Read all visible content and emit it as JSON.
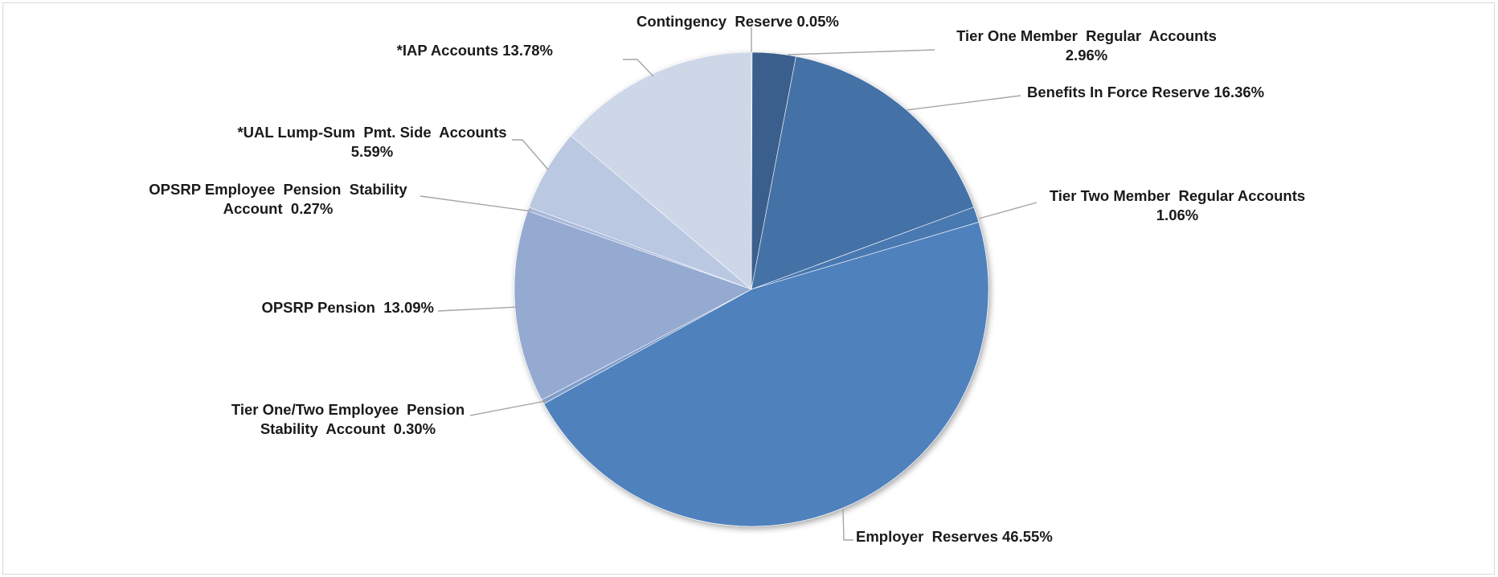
{
  "chart_data": {
    "type": "pie",
    "title": "",
    "start_angle_deg": 0,
    "direction": "clockwise",
    "slices": [
      {
        "name": "Contingency  Reserve",
        "value": 0.05,
        "label_lines": [
          "Contingency  Reserve 0.05%"
        ],
        "color": "#2f4f7a"
      },
      {
        "name": "Tier One Member  Regular  Accounts",
        "value": 2.96,
        "label_lines": [
          "Tier One Member  Regular  Accounts",
          "2.96%"
        ],
        "color": "#3a5e8c"
      },
      {
        "name": "Benefits In Force Reserve",
        "value": 16.36,
        "label_lines": [
          "Benefits In Force Reserve 16.36%"
        ],
        "color": "#4472a6"
      },
      {
        "name": "Tier Two Member  Regular Accounts",
        "value": 1.06,
        "label_lines": [
          "Tier Two Member  Regular Accounts",
          "1.06%"
        ],
        "color": "#4a79b1"
      },
      {
        "name": "Employer  Reserves",
        "value": 46.55,
        "label_lines": [
          "Employer  Reserves 46.55%"
        ],
        "color": "#4f81bd"
      },
      {
        "name": "Tier One/Two Employee  Pension Stability  Account",
        "value": 0.3,
        "label_lines": [
          "Tier One/Two Employee  Pension",
          "Stability  Account  0.30%"
        ],
        "color": "#7f9cc9"
      },
      {
        "name": "OPSRP Pension",
        "value": 13.09,
        "label_lines": [
          "OPSRP Pension  13.09%"
        ],
        "color": "#95aad1"
      },
      {
        "name": "OPSRP Employee  Pension  Stability Account",
        "value": 0.27,
        "label_lines": [
          "OPSRP Employee  Pension  Stability",
          "Account  0.27%"
        ],
        "color": "#a9b8da"
      },
      {
        "name": "*UAL Lump-Sum  Pmt. Side  Accounts",
        "value": 5.59,
        "label_lines": [
          "*UAL Lump-Sum  Pmt. Side  Accounts",
          "5.59%"
        ],
        "color": "#bac8e2"
      },
      {
        "name": "*IAP Accounts",
        "value": 13.78,
        "label_lines": [
          "*IAP Accounts 13.78%"
        ],
        "color": "#cdd7e8"
      }
    ]
  }
}
